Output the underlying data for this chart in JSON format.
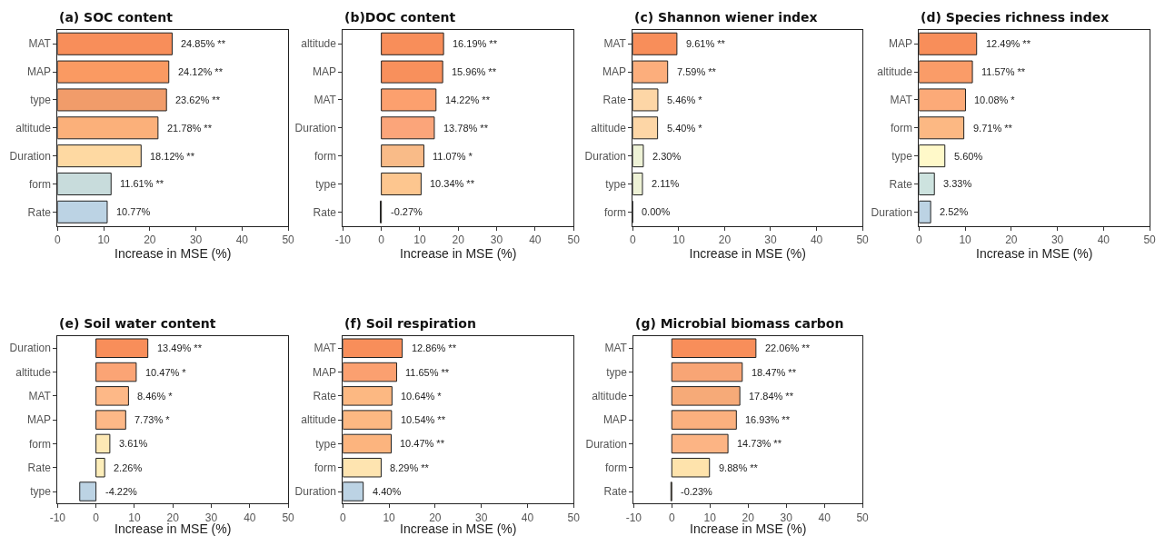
{
  "chart_data": [
    {
      "type": "bar",
      "orientation": "horizontal",
      "title": "(a) SOC content",
      "xlabel": "Increase in MSE (%)",
      "categories": [
        "MAT",
        "MAP",
        "type",
        "altitude",
        "Duration",
        "form",
        "Rate"
      ],
      "values": [
        24.85,
        24.12,
        23.62,
        21.78,
        18.12,
        11.61,
        10.77
      ],
      "colors": [
        "#f88e5a",
        "#fa9a62",
        "#f19c6a",
        "#fbb07a",
        "#fed9a2",
        "#c8dcdc",
        "#bcd3e4"
      ],
      "value_labels": [
        "24.85% **",
        "24.12% **",
        "23.62% **",
        "21.78% **",
        "18.12% **",
        "11.61% **",
        "10.77%"
      ],
      "xlim": [
        0,
        50
      ],
      "xticks": [
        0,
        10,
        20,
        30,
        40,
        50
      ]
    },
    {
      "type": "bar",
      "orientation": "horizontal",
      "title": "(b)DOC content",
      "xlabel": "Increase in MSE (%)",
      "categories": [
        "altitude",
        "MAP",
        "MAT",
        "Duration",
        "form",
        "type",
        "Rate"
      ],
      "values": [
        16.19,
        15.96,
        14.22,
        13.78,
        11.07,
        10.34,
        -0.27
      ],
      "colors": [
        "#f88e5a",
        "#f8905c",
        "#fca06e",
        "#fba57a",
        "#f9bb88",
        "#fdc68f",
        "#fddbaa"
      ],
      "value_labels": [
        "16.19% **",
        "15.96% **",
        "14.22% **",
        "13.78% **",
        "11.07% *",
        "10.34% **",
        "-0.27%"
      ],
      "xlim": [
        -10,
        50
      ],
      "xticks": [
        -10,
        0,
        10,
        20,
        30,
        40,
        50
      ]
    },
    {
      "type": "bar",
      "orientation": "horizontal",
      "title": "(c) Shannon wiener index",
      "xlabel": "Increase in MSE (%)",
      "categories": [
        "MAT",
        "MAP",
        "Rate",
        "altitude",
        "Duration",
        "type",
        "form"
      ],
      "values": [
        9.61,
        7.59,
        5.46,
        5.4,
        2.3,
        2.11,
        0.0
      ],
      "colors": [
        "#f88e5a",
        "#fcae7c",
        "#fdd6a6",
        "#fdd6a6",
        "#eef2d6",
        "#eef2d6",
        "#f2f2dc"
      ],
      "value_labels": [
        "9.61% **",
        "7.59% **",
        "5.46% *",
        "5.40% *",
        "2.30%",
        "2.11%",
        "0.00%"
      ],
      "xlim": [
        0,
        50
      ],
      "xticks": [
        0,
        10,
        20,
        30,
        40,
        50
      ]
    },
    {
      "type": "bar",
      "orientation": "horizontal",
      "title": "(d) Species richness index",
      "xlabel": "Increase in MSE (%)",
      "categories": [
        "MAP",
        "altitude",
        "MAT",
        "form",
        "type",
        "Rate",
        "Duration"
      ],
      "values": [
        12.49,
        11.57,
        10.08,
        9.71,
        5.6,
        3.33,
        2.52
      ],
      "colors": [
        "#f88e5a",
        "#fa9c68",
        "#fcaa78",
        "#fcb883",
        "#fff9c9",
        "#cde3df",
        "#bcd3e4"
      ],
      "value_labels": [
        "12.49% **",
        "11.57% **",
        "10.08% *",
        "9.71% **",
        "5.60%",
        "3.33%",
        "2.52%"
      ],
      "xlim": [
        0,
        50
      ],
      "xticks": [
        0,
        10,
        20,
        30,
        40,
        50
      ]
    },
    {
      "type": "bar",
      "orientation": "horizontal",
      "title": "(e) Soil water content",
      "xlabel": "Increase in MSE (%)",
      "categories": [
        "Duration",
        "altitude",
        "MAT",
        "MAP",
        "form",
        "Rate",
        "type"
      ],
      "values": [
        13.49,
        10.47,
        8.46,
        7.73,
        3.61,
        2.26,
        -4.22
      ],
      "colors": [
        "#f88e5a",
        "#fba475",
        "#fdb887",
        "#fdb887",
        "#fde8b4",
        "#fdeeba",
        "#bcd3e4"
      ],
      "value_labels": [
        "13.49% **",
        "10.47% *",
        "8.46% *",
        "7.73% *",
        "3.61%",
        "2.26%",
        "-4.22%"
      ],
      "xlim": [
        -10,
        50
      ],
      "xticks": [
        -10,
        0,
        10,
        20,
        30,
        40,
        50
      ]
    },
    {
      "type": "bar",
      "orientation": "horizontal",
      "title": "(f) Soil respiration",
      "xlabel": "Increase in MSE (%)",
      "categories": [
        "MAT",
        "MAP",
        "Rate",
        "altitude",
        "type",
        "form",
        "Duration"
      ],
      "values": [
        12.86,
        11.65,
        10.64,
        10.54,
        10.47,
        8.29,
        4.4
      ],
      "colors": [
        "#f88e5a",
        "#fba070",
        "#fcb882",
        "#fcb882",
        "#fcb47e",
        "#fee4b0",
        "#bcd3e4"
      ],
      "value_labels": [
        "12.86% **",
        "11.65% **",
        "10.64% *",
        "10.54% **",
        "10.47% **",
        "8.29% **",
        "4.40%"
      ],
      "xlim": [
        0,
        50
      ],
      "xticks": [
        0,
        10,
        20,
        30,
        40,
        50
      ]
    },
    {
      "type": "bar",
      "orientation": "horizontal",
      "title": "(g) Microbial biomass carbon",
      "xlabel": "Increase in MSE (%)",
      "categories": [
        "MAT",
        "type",
        "altitude",
        "MAP",
        "Duration",
        "form",
        "Rate"
      ],
      "values": [
        22.06,
        18.47,
        17.84,
        16.93,
        14.73,
        9.88,
        -0.23
      ],
      "colors": [
        "#f88e5a",
        "#f8a575",
        "#f6aa78",
        "#fbb07e",
        "#fcb484",
        "#fee3ac",
        "#fde0aa"
      ],
      "value_labels": [
        "22.06% **",
        "18.47% **",
        "17.84% **",
        "16.93% **",
        "14.73% **",
        "9.88% **",
        "-0.23%"
      ],
      "xlim": [
        -10,
        50
      ],
      "xticks": [
        -10,
        0,
        10,
        20,
        30,
        40,
        50
      ]
    }
  ]
}
